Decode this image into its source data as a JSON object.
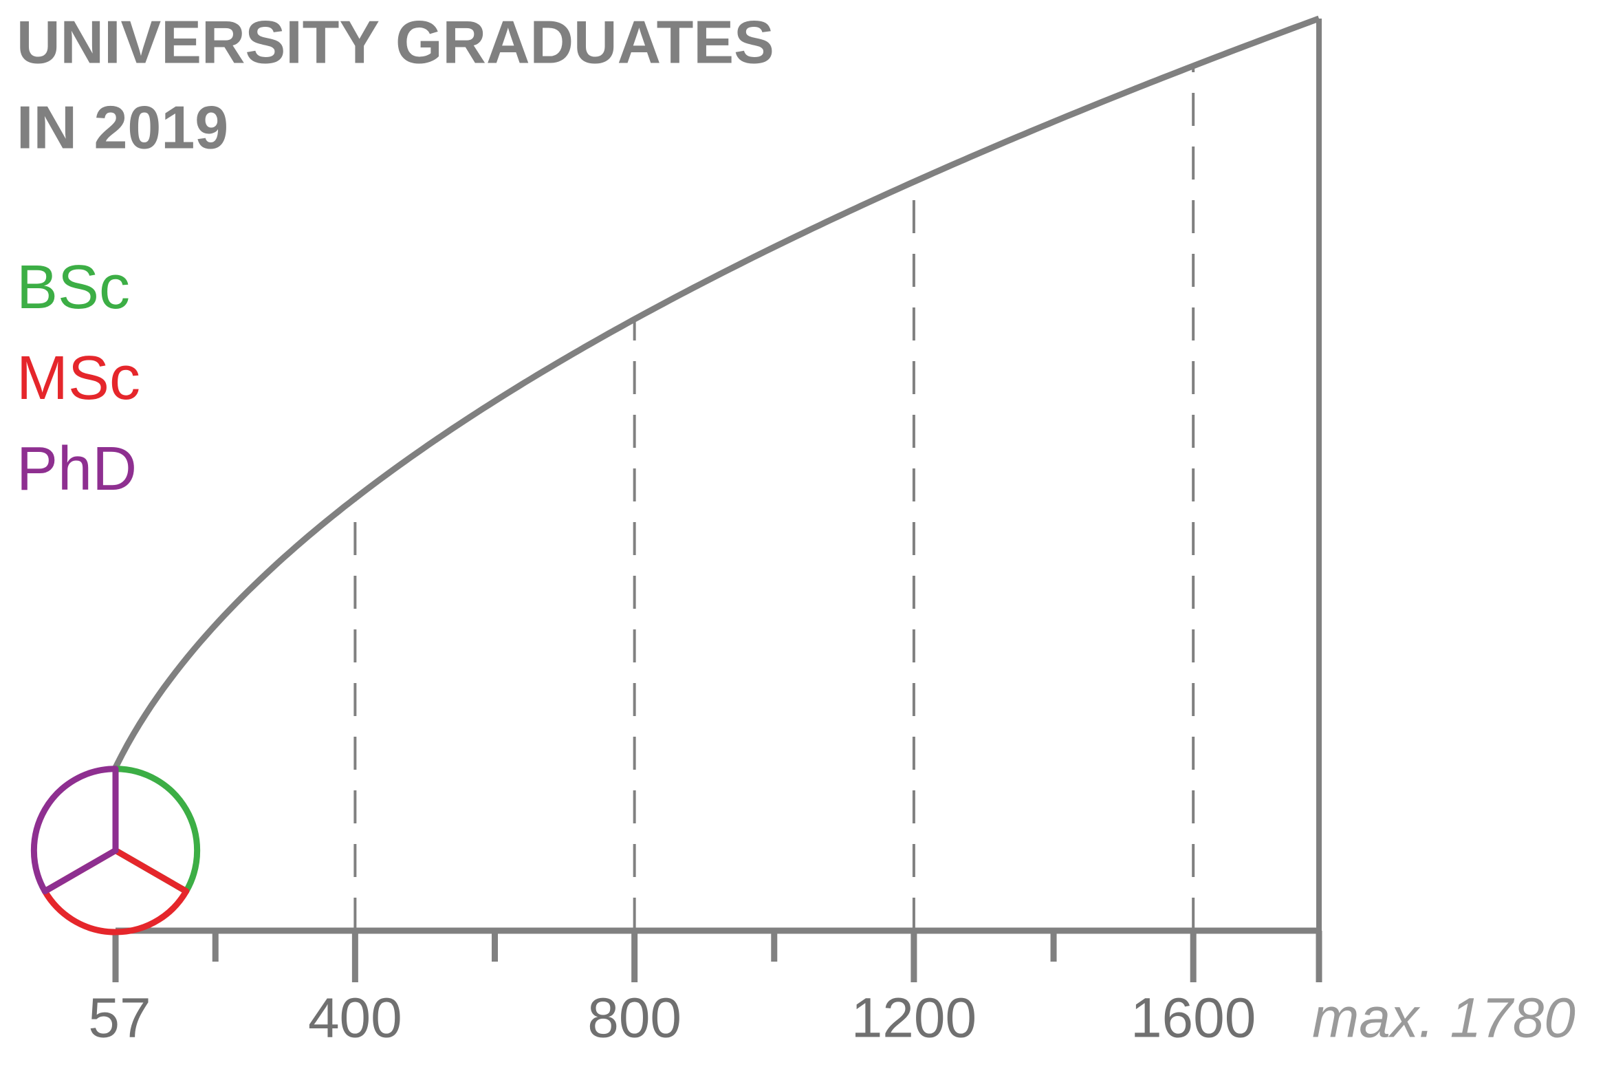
{
  "chart_data": {
    "type": "size_legend",
    "title": [
      "UNIVERSITY GRADUATES",
      "IN 2019"
    ],
    "series": [
      {
        "name": "BSc",
        "color": "#3cae45"
      },
      {
        "name": "MSc",
        "color": "#e5262b"
      },
      {
        "name": "PhD",
        "color": "#8e2f90"
      }
    ],
    "size_scale": "sqrt",
    "xlim": [
      57,
      1780
    ],
    "xticks": [
      57,
      400,
      800,
      1200,
      1600,
      {
        "value": 1780,
        "label": "max. 1780"
      }
    ],
    "minor_xticks": [
      200,
      600,
      1000,
      1400
    ],
    "color": "#808080"
  }
}
